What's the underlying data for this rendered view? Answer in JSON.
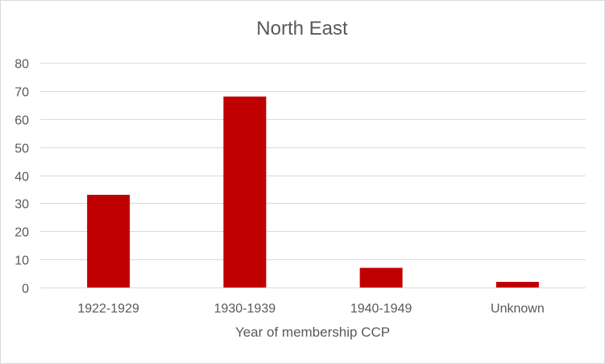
{
  "chart_data": {
    "type": "bar",
    "title": "North East",
    "xlabel": "Year of membership CCP",
    "ylabel": "",
    "categories": [
      "1922-1929",
      "1930-1939",
      "1940-1949",
      "Unknown"
    ],
    "values": [
      33,
      68,
      7,
      2
    ],
    "ylim": [
      0,
      80
    ],
    "yticks": [
      "0",
      "10",
      "20",
      "30",
      "40",
      "50",
      "60",
      "70",
      "80"
    ],
    "grid": true,
    "legend": "none",
    "bar_color": "#c00000",
    "grid_color": "#d9d9d9",
    "text_color": "#595959"
  }
}
